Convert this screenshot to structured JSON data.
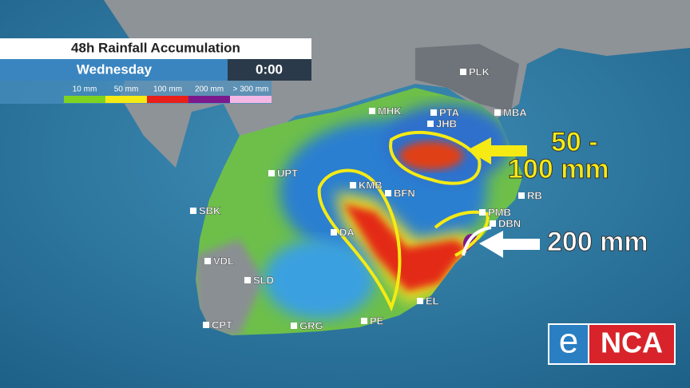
{
  "header": {
    "title": "48h Rainfall Accumulation",
    "day": "Wednesday",
    "time": "0:00"
  },
  "legend": [
    {
      "label": "10 mm",
      "color": "#7ed321"
    },
    {
      "label": "50 mm",
      "color": "#f5ea14"
    },
    {
      "label": "100 mm",
      "color": "#e8201a"
    },
    {
      "label": "200 mm",
      "color": "#7a1a8c"
    },
    {
      "label": "> 300 mm",
      "color": "#f4b8e6"
    }
  ],
  "cities": [
    "PLK",
    "MHK",
    "PTA",
    "JHB",
    "MBA",
    "UPT",
    "KMB",
    "BFN",
    "RB",
    "SBK",
    "PMB",
    "DBN",
    "DA",
    "VDL",
    "SLD",
    "EL",
    "CPT",
    "GRG",
    "PE"
  ],
  "annotations": [
    {
      "lines": [
        "50 -",
        "100 mm"
      ]
    },
    {
      "lines": [
        "200 mm"
      ]
    }
  ],
  "logo": {
    "e": "e",
    "rest": "NCA"
  }
}
